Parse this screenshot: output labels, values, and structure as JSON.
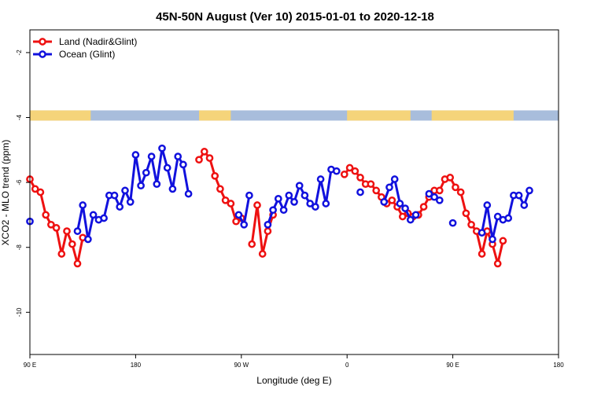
{
  "chart_data": {
    "type": "line",
    "title": "45N-50N August (Ver 10)   2015-01-01 to 2020-12-18",
    "xlabel": "Longitude (deg E)",
    "ylabel": "XCO2 - MLO trend (ppm)",
    "xlim": [
      0,
      100
    ],
    "ylim": [
      -11.3,
      -1.3
    ],
    "x_ticks": [
      {
        "value": 0,
        "label": "90 E"
      },
      {
        "value": 20,
        "label": "180"
      },
      {
        "value": 40,
        "label": "90 W"
      },
      {
        "value": 60,
        "label": "0"
      },
      {
        "value": 80,
        "label": "90 E"
      },
      {
        "value": 100,
        "label": "180"
      }
    ],
    "y_ticks": [
      {
        "value": -2,
        "label": "-2"
      },
      {
        "value": -4,
        "label": "-4"
      },
      {
        "value": -6,
        "label": "-6"
      },
      {
        "value": -8,
        "label": "-8"
      },
      {
        "value": -10,
        "label": "-10"
      }
    ],
    "land_mask": {
      "y": -3.95,
      "land_color": "#F5D47A",
      "ocean_color": "#A8BDDC",
      "land_ranges": [
        [
          0,
          11.5
        ],
        [
          32,
          38
        ],
        [
          60,
          72
        ],
        [
          76,
          91.5
        ]
      ]
    },
    "legend": {
      "position": "top-left",
      "entries": [
        {
          "label": "Land (Nadir&Glint)",
          "color": "#EE1111"
        },
        {
          "label": "Ocean (Glint)",
          "color": "#1111DD"
        }
      ]
    },
    "series": [
      {
        "name": "Land (Nadir&Glint)",
        "color": "#EE1111",
        "segments": [
          [
            [
              0,
              -5.9
            ],
            [
              1,
              -6.2
            ],
            [
              2,
              -6.3
            ],
            [
              3,
              -7.0
            ],
            [
              4,
              -7.3
            ],
            [
              5,
              -7.4
            ],
            [
              6,
              -8.2
            ],
            [
              7,
              -7.5
            ],
            [
              8,
              -7.9
            ],
            [
              9,
              -8.5
            ],
            [
              10,
              -7.7
            ]
          ],
          [
            [
              32,
              -5.3
            ],
            [
              33,
              -5.05
            ],
            [
              34,
              -5.25
            ],
            [
              35,
              -5.8
            ],
            [
              36,
              -6.2
            ],
            [
              37,
              -6.55
            ],
            [
              38,
              -6.65
            ],
            [
              39,
              -7.2
            ],
            [
              40,
              -7.1
            ]
          ],
          [
            [
              42,
              -7.9
            ],
            [
              43,
              -6.7
            ],
            [
              44,
              -8.2
            ],
            [
              45,
              -7.5
            ],
            [
              46,
              -7.0
            ]
          ],
          [
            [
              59.5,
              -5.75
            ],
            [
              60.5,
              -5.55
            ],
            [
              61.5,
              -5.65
            ],
            [
              62.5,
              -5.85
            ],
            [
              63.5,
              -6.05
            ],
            [
              64.5,
              -6.05
            ],
            [
              65.5,
              -6.25
            ],
            [
              66.5,
              -6.45
            ],
            [
              67.5,
              -6.65
            ],
            [
              68.5,
              -6.55
            ],
            [
              69.5,
              -6.75
            ],
            [
              70.5,
              -7.05
            ],
            [
              71.5,
              -6.95
            ],
            [
              72.5,
              -7.05
            ],
            [
              73.5,
              -7.0
            ],
            [
              74.5,
              -6.75
            ],
            [
              75.5,
              -6.45
            ],
            [
              76.5,
              -6.25
            ],
            [
              77.5,
              -6.25
            ],
            [
              78.5,
              -5.9
            ],
            [
              79.5,
              -5.85
            ],
            [
              80.5,
              -6.15
            ],
            [
              81.5,
              -6.3
            ],
            [
              82.5,
              -6.95
            ],
            [
              83.5,
              -7.3
            ],
            [
              84.5,
              -7.5
            ],
            [
              85.5,
              -8.2
            ],
            [
              86.5,
              -7.5
            ],
            [
              87.5,
              -7.9
            ],
            [
              88.5,
              -8.5
            ],
            [
              89.5,
              -7.8
            ]
          ]
        ]
      },
      {
        "name": "Ocean (Glint)",
        "color": "#1111DD",
        "segments": [
          [
            [
              0,
              -7.2
            ]
          ],
          [
            [
              9,
              -7.5
            ],
            [
              10,
              -6.7
            ],
            [
              11,
              -7.75
            ],
            [
              12,
              -7.0
            ],
            [
              13,
              -7.15
            ],
            [
              14,
              -7.1
            ],
            [
              15,
              -6.4
            ],
            [
              16,
              -6.4
            ],
            [
              17,
              -6.75
            ],
            [
              18,
              -6.25
            ],
            [
              19,
              -6.6
            ],
            [
              20,
              -5.15
            ],
            [
              21,
              -6.1
            ],
            [
              22,
              -5.7
            ],
            [
              23,
              -5.2
            ],
            [
              24,
              -6.05
            ],
            [
              25,
              -4.95
            ],
            [
              26,
              -5.55
            ],
            [
              27,
              -6.2
            ],
            [
              28,
              -5.2
            ],
            [
              29,
              -5.45
            ],
            [
              30,
              -6.35
            ]
          ],
          [
            [
              39.5,
              -7.0
            ],
            [
              40.5,
              -7.3
            ],
            [
              41.5,
              -6.4
            ]
          ],
          [
            [
              45,
              -7.3
            ],
            [
              46,
              -6.85
            ],
            [
              47,
              -6.5
            ],
            [
              48,
              -6.85
            ],
            [
              49,
              -6.4
            ],
            [
              50,
              -6.6
            ],
            [
              51,
              -6.1
            ],
            [
              52,
              -6.4
            ],
            [
              53,
              -6.65
            ],
            [
              54,
              -6.75
            ],
            [
              55,
              -5.9
            ],
            [
              56,
              -6.65
            ],
            [
              57,
              -5.6
            ],
            [
              58,
              -5.65
            ]
          ],
          [
            [
              62.5,
              -6.3
            ]
          ],
          [
            [
              67,
              -6.6
            ],
            [
              68,
              -6.15
            ],
            [
              69,
              -5.9
            ],
            [
              70,
              -6.65
            ],
            [
              71,
              -6.8
            ],
            [
              72,
              -7.15
            ],
            [
              73,
              -7.0
            ]
          ],
          [
            [
              75.5,
              -6.35
            ],
            [
              76.5,
              -6.45
            ],
            [
              77.5,
              -6.55
            ]
          ],
          [
            [
              80,
              -7.25
            ]
          ],
          [
            [
              85.5,
              -7.55
            ],
            [
              86.5,
              -6.7
            ],
            [
              87.5,
              -7.75
            ],
            [
              88.5,
              -7.05
            ],
            [
              89.5,
              -7.15
            ],
            [
              90.5,
              -7.1
            ],
            [
              91.5,
              -6.4
            ],
            [
              92.5,
              -6.4
            ],
            [
              93.5,
              -6.7
            ],
            [
              94.5,
              -6.25
            ]
          ]
        ]
      }
    ]
  }
}
